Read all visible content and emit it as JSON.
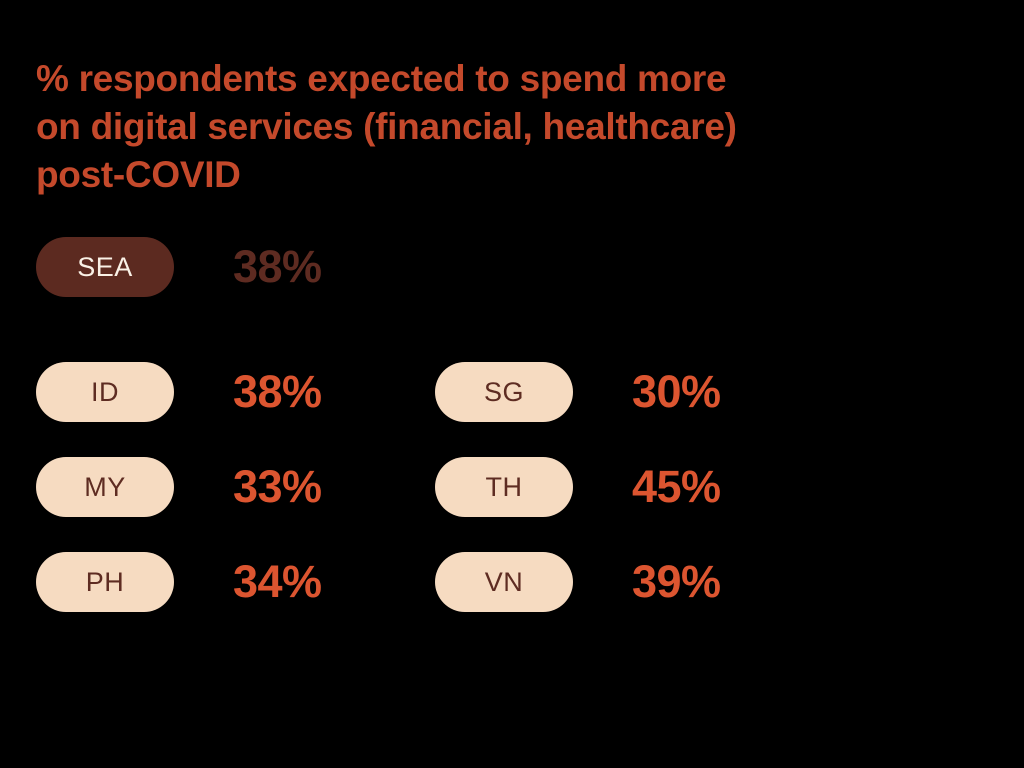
{
  "title": {
    "full": "% respondents expected to spend more on digital services (financial, healthcare) post-COVID",
    "lines": [
      "% respondents expected to spend more",
      "on digital services (financial, healthcare)",
      "post-COVID"
    ]
  },
  "sea": {
    "code": "SEA",
    "value": "38%"
  },
  "countries": [
    {
      "code": "ID",
      "value": "38%"
    },
    {
      "code": "SG",
      "value": "30%"
    },
    {
      "code": "MY",
      "value": "33%"
    },
    {
      "code": "TH",
      "value": "45%"
    },
    {
      "code": "PH",
      "value": "34%"
    },
    {
      "code": "VN",
      "value": "39%"
    }
  ],
  "colors": {
    "background": "#000000",
    "title_text": "#C4492B",
    "value_orange": "#DC5530",
    "sea_pill_bg": "#5C2A20",
    "sea_pill_text": "#FAF1E6",
    "sea_value_text": "#5E2B21",
    "country_pill_bg": "#F6DBC1",
    "country_pill_text": "#5E2C22"
  },
  "chart_data": {
    "type": "table",
    "title": "% respondents expected to spend more on digital services (financial, healthcare) post-COVID",
    "categories": [
      "SEA",
      "ID",
      "SG",
      "MY",
      "TH",
      "PH",
      "VN"
    ],
    "values": [
      38,
      38,
      30,
      33,
      45,
      34,
      39
    ],
    "unit": "%",
    "notes": "SEA is the regional aggregate highlighted with a dark pill; country rows arranged in two columns (ID/MY/PH left, SG/TH/VN right)"
  }
}
